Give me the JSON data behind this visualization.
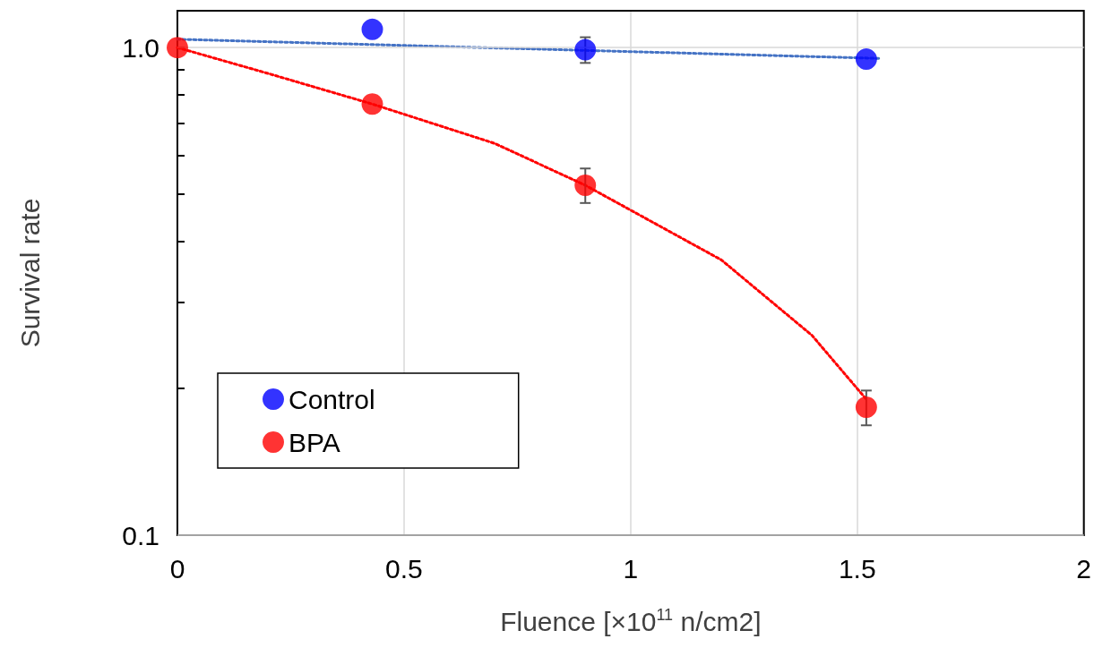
{
  "chart_data": {
    "type": "scatter",
    "xlabel": "Fluence [×10$^{11}$ n/cm2]",
    "ylabel": "Survival rate",
    "xlim": [
      0,
      2
    ],
    "xticks": [
      0,
      0.5,
      1,
      1.5,
      2
    ],
    "ylim": [
      0.1,
      1.19
    ],
    "yticks": [
      {
        "value": 0.1,
        "label": "0.1"
      },
      {
        "value": 0.2,
        "label": null
      },
      {
        "value": 0.3,
        "label": null
      },
      {
        "value": 0.4,
        "label": null
      },
      {
        "value": 0.5,
        "label": null
      },
      {
        "value": 0.6,
        "label": null
      },
      {
        "value": 0.7,
        "label": null
      },
      {
        "value": 0.8,
        "label": null
      },
      {
        "value": 0.9,
        "label": null
      },
      {
        "value": 1,
        "label": "1.0"
      }
    ],
    "log": "y",
    "grid": true,
    "legend": "bottom left",
    "marker": "circle",
    "series": [
      {
        "name": "Control",
        "color": "#0000ff",
        "x": [
          0.43,
          0.9,
          1.52
        ],
        "values": [
          1.09,
          0.99,
          0.947
        ],
        "errors": [
          null,
          [
            0.93,
            1.05
          ],
          null
        ]
      },
      {
        "name": "BPA",
        "color": "#ff0000",
        "x": [
          0,
          0.43,
          0.9,
          1.52
        ],
        "values": [
          1.0,
          0.766,
          0.522,
          0.183
        ],
        "errors": [
          null,
          null,
          [
            0.48,
            0.565
          ],
          [
            0.168,
            0.198
          ]
        ]
      },
      {
        "type": "line",
        "color": "#4472c4",
        "line_style": "dotted",
        "marker": "none",
        "x": [
          0,
          1.55
        ],
        "values": [
          1.04,
          0.95
        ]
      },
      {
        "type": "line",
        "color": "#ff0000",
        "line_style": "dotted",
        "marker": "none",
        "x": [
          0,
          0.2,
          0.43,
          0.7,
          0.9,
          1.2,
          1.4,
          1.52
        ],
        "values": [
          1.0,
          0.885,
          0.766,
          0.636,
          0.522,
          0.367,
          0.257,
          0.19
        ]
      }
    ]
  }
}
